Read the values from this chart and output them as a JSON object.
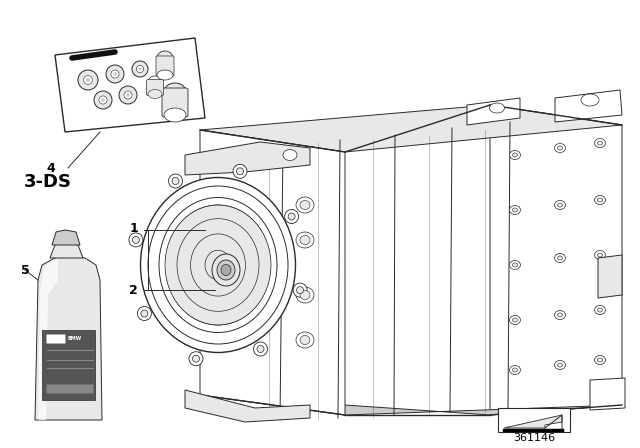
{
  "bg_color": "#ffffff",
  "diagram_id": "361146",
  "label_3ds": "3-DS",
  "figsize": [
    6.4,
    4.48
  ],
  "dpi": 100,
  "line_color": "#2a2a2a",
  "light_gray": "#e8e8e8",
  "mid_gray": "#cccccc",
  "dark_gray": "#aaaaaa",
  "bottle_light": "#d8d8d8",
  "bottle_dark": "#8a8a8a",
  "label_bg": "#555555"
}
